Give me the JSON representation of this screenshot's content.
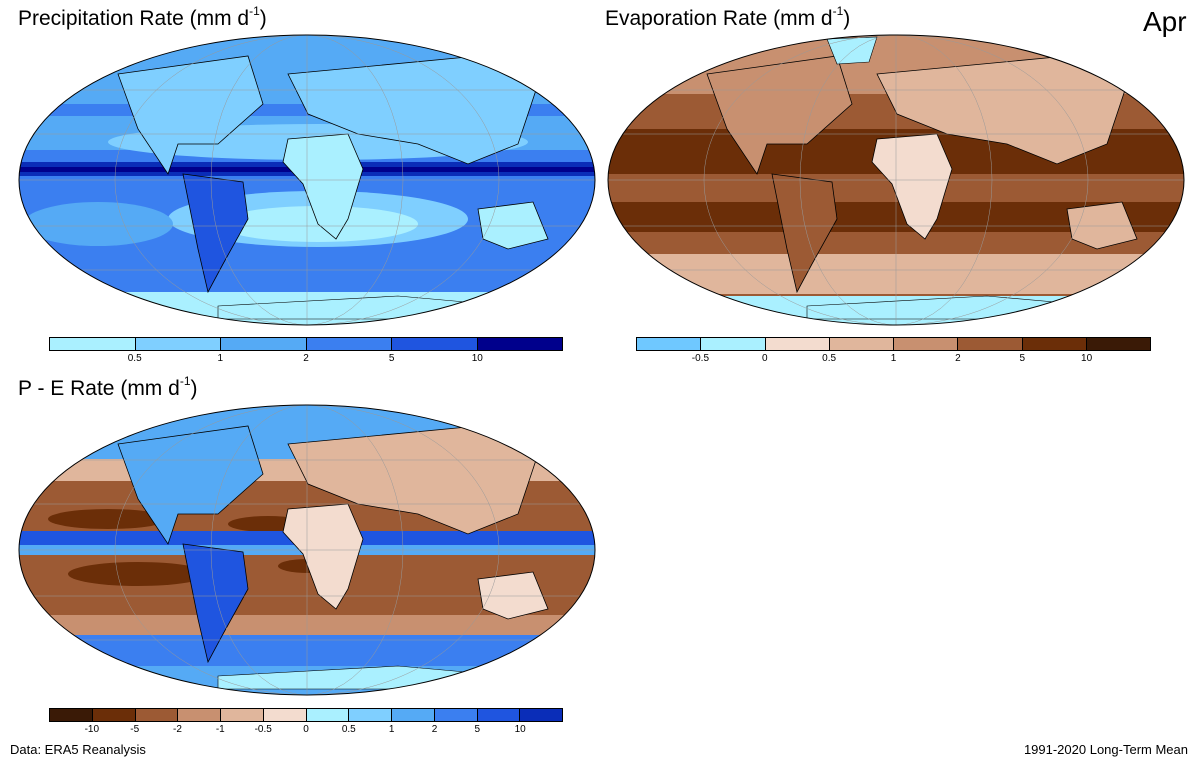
{
  "month": "Apr",
  "footer": {
    "source": "Data: ERA5 Reanalysis",
    "period": "1991-2020 Long-Term Mean"
  },
  "panels": [
    {
      "id": "precip",
      "title": "Precipitation Rate (mm  d",
      "title_sup": "-1",
      "title_close": ")",
      "colorbar": {
        "colors": [
          "#aaf0ff",
          "#7fcfff",
          "#55aaf5",
          "#3b7ff0",
          "#1f55e0",
          "#0a2db8",
          "#00008c"
        ],
        "ticks": [
          "0.5",
          "1",
          "2",
          "5",
          "10"
        ]
      }
    },
    {
      "id": "evap",
      "title": "Evaporation Rate (mm  d",
      "title_sup": "-1",
      "title_close": ")",
      "colorbar": {
        "colors": [
          "#6fc8ff",
          "#aaf0ff",
          "#f3dccf",
          "#e0b69c",
          "#c89070",
          "#9c5a34",
          "#6b2e08",
          "#3a1a06"
        ],
        "ticks": [
          "-0.5",
          "0",
          "0.5",
          "1",
          "2",
          "5",
          "10"
        ]
      }
    },
    {
      "id": "pe",
      "title": "P - E Rate (mm  d",
      "title_sup": "-1",
      "title_close": ")",
      "colorbar": {
        "colors": [
          "#3a1a06",
          "#6b2e08",
          "#9c5a34",
          "#c89070",
          "#e0b69c",
          "#f3dccf",
          "#aaf0ff",
          "#7fcfff",
          "#55aaf5",
          "#3b7ff0",
          "#1f55e0",
          "#0a2db8"
        ],
        "ticks": [
          "-10",
          "-5",
          "-2",
          "-1",
          "-0.5",
          "0",
          "0.5",
          "1",
          "2",
          "5",
          "10"
        ]
      }
    }
  ]
}
